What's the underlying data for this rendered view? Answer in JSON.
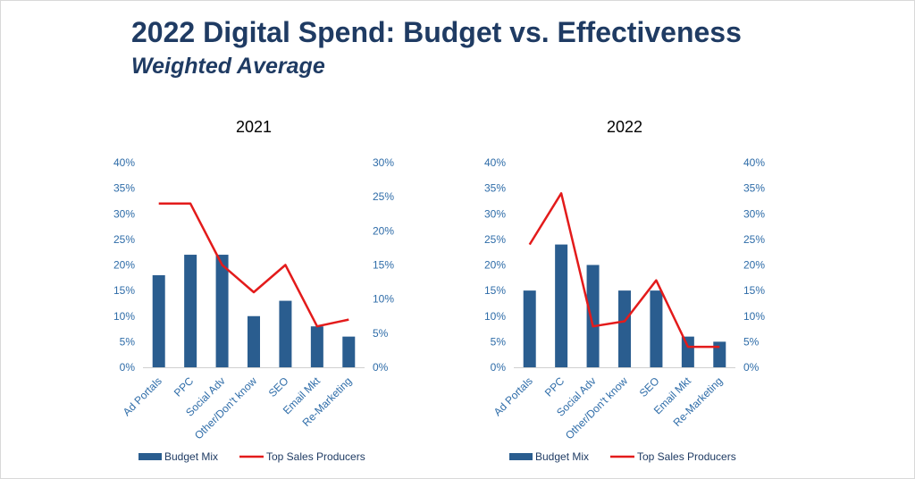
{
  "header": {
    "title": "2022 Digital Spend:  Budget vs. Effectiveness",
    "subtitle": "Weighted Average"
  },
  "colors": {
    "bar": "#2a5d8f",
    "line": "#e31b1b",
    "tick": "#2e6ca8",
    "title": "#1f3b63"
  },
  "chart_data": [
    {
      "type": "bar",
      "title": "2021",
      "categories": [
        "Ad Portals",
        "PPC",
        "Social Adv",
        "Other/Don't know",
        "SEO",
        "Email Mkt",
        "Re-Marketing"
      ],
      "series": [
        {
          "name": "Budget Mix",
          "type": "bar",
          "axis": "left",
          "values": [
            18,
            22,
            22,
            10,
            13,
            8,
            6
          ]
        },
        {
          "name": "Top Sales Producers",
          "type": "line",
          "axis": "right",
          "values": [
            24,
            24,
            15,
            11,
            15,
            6,
            7
          ]
        }
      ],
      "ylim_left": [
        0,
        40
      ],
      "left_ticks": [
        "0%",
        "5%",
        "10%",
        "15%",
        "20%",
        "25%",
        "30%",
        "35%",
        "40%"
      ],
      "ylim_right": [
        0,
        30
      ],
      "right_ticks": [
        "0%",
        "5%",
        "10%",
        "15%",
        "20%",
        "25%",
        "30%"
      ],
      "legend": "bottom",
      "grid": false
    },
    {
      "type": "bar",
      "title": "2022",
      "categories": [
        "Ad Portals",
        "PPC",
        "Social Adv",
        "Other/Don't know",
        "SEO",
        "Email Mkt",
        "Re-Marketing"
      ],
      "series": [
        {
          "name": "Budget Mix",
          "type": "bar",
          "axis": "left",
          "values": [
            15,
            24,
            20,
            15,
            15,
            6,
            5
          ]
        },
        {
          "name": "Top Sales Producers",
          "type": "line",
          "axis": "right",
          "values": [
            24,
            34,
            8,
            9,
            17,
            4,
            4
          ]
        }
      ],
      "ylim_left": [
        0,
        40
      ],
      "left_ticks": [
        "0%",
        "5%",
        "10%",
        "15%",
        "20%",
        "25%",
        "30%",
        "35%",
        "40%"
      ],
      "ylim_right": [
        0,
        40
      ],
      "right_ticks": [
        "0%",
        "5%",
        "10%",
        "15%",
        "20%",
        "25%",
        "30%",
        "35%",
        "40%"
      ],
      "legend": "bottom",
      "grid": false
    }
  ]
}
